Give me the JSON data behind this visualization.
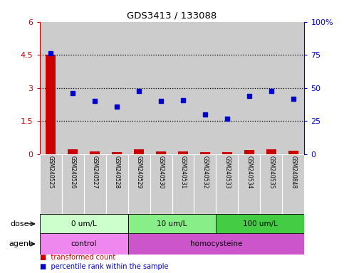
{
  "title": "GDS3413 / 133088",
  "samples": [
    "GSM240525",
    "GSM240526",
    "GSM240527",
    "GSM240528",
    "GSM240529",
    "GSM240530",
    "GSM240531",
    "GSM240532",
    "GSM240533",
    "GSM240534",
    "GSM240535",
    "GSM240848"
  ],
  "transformed_count": [
    4.5,
    0.22,
    0.14,
    0.11,
    0.23,
    0.12,
    0.12,
    0.09,
    0.08,
    0.18,
    0.22,
    0.15
  ],
  "percentile_rank": [
    76,
    46,
    40,
    36,
    48,
    40,
    41,
    30,
    27,
    44,
    48,
    42
  ],
  "bar_color": "#cc0000",
  "dot_color": "#0000cc",
  "ylim_left": [
    0,
    6
  ],
  "ylim_right": [
    0,
    100
  ],
  "yticks_left": [
    0,
    1.5,
    3.0,
    4.5,
    6.0
  ],
  "yticks_left_labels": [
    "0",
    "1.5",
    "3",
    "4.5",
    "6"
  ],
  "yticks_right": [
    0,
    25,
    50,
    75,
    100
  ],
  "yticks_right_labels": [
    "0",
    "25",
    "50",
    "75",
    "100%"
  ],
  "hlines": [
    1.5,
    3.0,
    4.5
  ],
  "dose_groups": [
    {
      "label": "0 um/L",
      "start": 0,
      "end": 4,
      "color": "#ccffcc"
    },
    {
      "label": "10 um/L",
      "start": 4,
      "end": 8,
      "color": "#88ee88"
    },
    {
      "label": "100 um/L",
      "start": 8,
      "end": 12,
      "color": "#44cc44"
    }
  ],
  "agent_groups": [
    {
      "label": "control",
      "start": 0,
      "end": 4,
      "color": "#ee88ee"
    },
    {
      "label": "homocysteine",
      "start": 4,
      "end": 12,
      "color": "#cc55cc"
    }
  ],
  "dose_label": "dose",
  "agent_label": "agent",
  "left_axis_color": "#cc0000",
  "right_axis_color": "#0000cc",
  "bg_color": "#ffffff",
  "plot_bg_color": "#ffffff",
  "cell_bg_color": "#cccccc"
}
